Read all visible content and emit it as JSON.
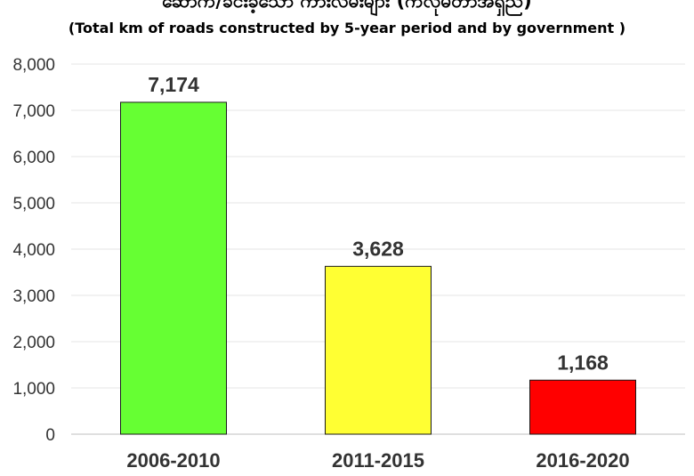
{
  "chart_data": {
    "type": "bar",
    "title": "ဆောက်/ခင်းခဲ့သော ကားလမ်းများ (ကီလိုမီတာအရှည်)",
    "subtitle": "(Total km of roads constructed by 5-year period and by government )",
    "categories": [
      "2006-2010",
      "2011-2015",
      "2016-2020"
    ],
    "values": [
      7174,
      3628,
      1168
    ],
    "value_labels": [
      "7,174",
      "3,628",
      "1,168"
    ],
    "colors": [
      "#66ff33",
      "#ffff33",
      "#ff0000"
    ],
    "ylim": [
      0,
      8000
    ],
    "yticks": [
      0,
      1000,
      2000,
      3000,
      4000,
      5000,
      6000,
      7000,
      8000
    ],
    "ytick_labels": [
      "0",
      "1,000",
      "2,000",
      "3,000",
      "4,000",
      "5,000",
      "6,000",
      "7,000",
      "8,000"
    ],
    "grid": true,
    "xlabel": "",
    "ylabel": ""
  }
}
